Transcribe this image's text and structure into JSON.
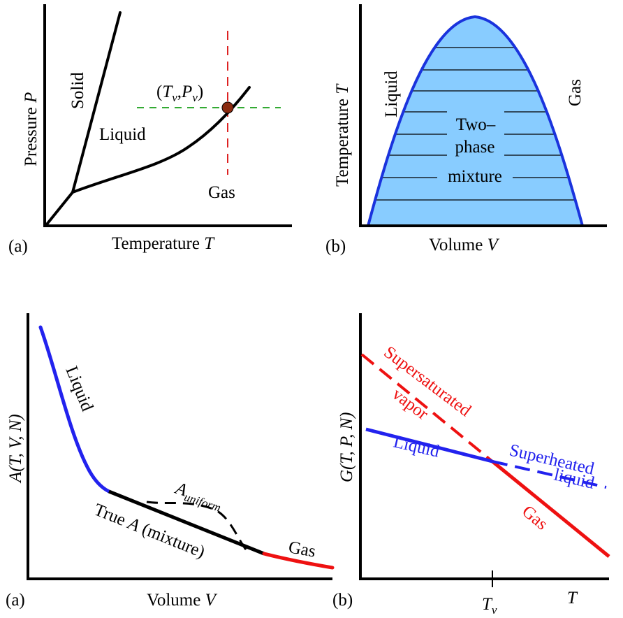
{
  "panel_tl": {
    "letter": "(a)",
    "y_axis": "Pressure",
    "y_var": "P",
    "x_axis": "Temperature",
    "x_var": "T",
    "solid": "Solid",
    "liquid": "Liquid",
    "gas": "Gas",
    "point": {
      "open": "(",
      "T": "T",
      "v1": "v",
      "comma": ",",
      "P": "P",
      "v2": "v",
      "close": ")"
    },
    "colors": {
      "dashed_vertical": "#dd2222",
      "dashed_horizontal": "#33aa33",
      "point": "#8b2a10"
    }
  },
  "panel_tr": {
    "letter": "(b)",
    "y_axis": "Temperature",
    "y_var": "T",
    "x_axis": "Volume",
    "x_var": "V",
    "liquid": "Liquid",
    "gas": "Gas",
    "mixture_lines": [
      "Two–",
      "phase",
      "mixture"
    ],
    "colors": {
      "dome_fill": "#88ccff",
      "dome_edge": "#1a33dd"
    }
  },
  "panel_bl": {
    "letter": "(a)",
    "y_axis": "A",
    "y_args": "(T, V, N)",
    "x_axis": "Volume",
    "x_var": "V",
    "liquid": "Liquid",
    "gas": "Gas",
    "uniform_main": "A",
    "uniform_sub": "uniform",
    "true_pre": "True ",
    "true_var": "A",
    "true_post": " (mixture)",
    "colors": {
      "liquid": "#2222ee",
      "mixture": "#000000",
      "gas": "#ee1111"
    }
  },
  "panel_br": {
    "letter": "(b)",
    "y_axis": "G",
    "y_args": "(T, P, N)",
    "x_var": "T",
    "tick_main": "T",
    "tick_sub": "v",
    "supersaturated": "Supersaturated",
    "vapor": "vapor",
    "liquid": "Liquid",
    "superheated": "Superheated",
    "superheated_liquid": "liquid",
    "gas": "Gas",
    "colors": {
      "liquid": "#2222ee",
      "gas": "#ee1111"
    }
  }
}
